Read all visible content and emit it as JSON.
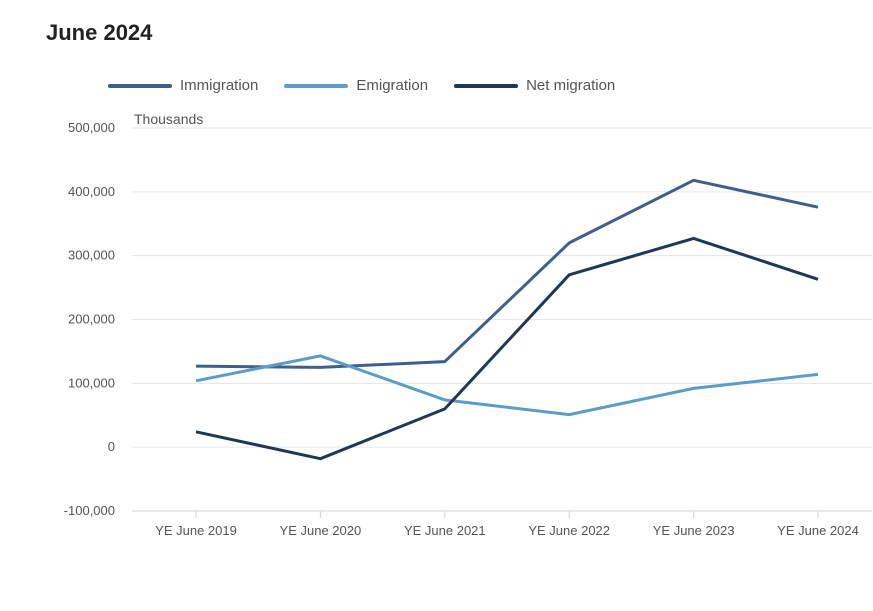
{
  "title_line1": "June 2024",
  "chart_data": {
    "type": "line",
    "title": "June 2024",
    "ylabel": "Thousands",
    "xlabel": "",
    "categories": [
      "YE June 2019",
      "YE June 2020",
      "YE June 2021",
      "YE June 2022",
      "YE June 2023",
      "YE June 2024"
    ],
    "series": [
      {
        "name": "Immigration",
        "color": "#3f5f8e",
        "values": [
          127000,
          125000,
          134000,
          320000,
          418000,
          376000
        ]
      },
      {
        "name": "Emigration",
        "color": "#5b9dc7",
        "values": [
          104000,
          143000,
          74000,
          51000,
          92000,
          114000
        ]
      },
      {
        "name": "Net migration",
        "color": "#1f3853",
        "values": [
          24000,
          -18000,
          60000,
          270000,
          327000,
          263000
        ]
      }
    ],
    "yticks": [
      "500,000",
      "400,000",
      "300,000",
      "200,000",
      "100,000",
      "0",
      "-100,000"
    ],
    "ylim": [
      -100000,
      500000
    ],
    "grid": true,
    "legend": "top-left"
  }
}
